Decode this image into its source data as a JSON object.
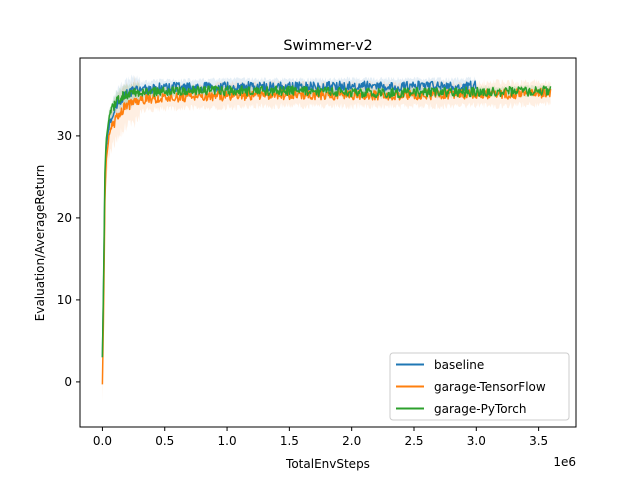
{
  "chart_data": {
    "type": "line",
    "title": "Swimmer-v2",
    "xlabel": "TotalEnvSteps",
    "ylabel": "Evaluation/AverageReturn",
    "x_offset_label": "1e6",
    "xlim": [
      -0.18,
      3.8
    ],
    "ylim": [
      -5.5,
      39.5
    ],
    "x_ticks": [
      0.0,
      0.5,
      1.0,
      1.5,
      2.0,
      2.5,
      3.0,
      3.5
    ],
    "x_tick_labels": [
      "0.0",
      "0.5",
      "1.0",
      "1.5",
      "2.0",
      "2.5",
      "3.0",
      "3.5"
    ],
    "y_ticks": [
      0,
      10,
      20,
      30
    ],
    "y_tick_labels": [
      "0",
      "10",
      "20",
      "30"
    ],
    "grid": false,
    "legend_position": "lower-right",
    "series": [
      {
        "name": "baseline",
        "color": "#1f77b4",
        "x": [
          0.0,
          0.01,
          0.02,
          0.03,
          0.05,
          0.08,
          0.12,
          0.18,
          0.25,
          0.35,
          0.5,
          0.75,
          1.0,
          1.25,
          1.5,
          1.75,
          2.0,
          2.25,
          2.5,
          2.75,
          3.0
        ],
        "y": [
          3.0,
          12.0,
          24.0,
          28.5,
          31.0,
          32.8,
          34.0,
          35.0,
          35.5,
          35.7,
          35.9,
          35.9,
          36.0,
          36.0,
          36.0,
          36.0,
          36.1,
          36.0,
          36.1,
          36.0,
          36.1
        ],
        "band": 0.9
      },
      {
        "name": "garage-TensorFlow",
        "color": "#ff7f0e",
        "x": [
          0.0,
          0.01,
          0.02,
          0.03,
          0.05,
          0.08,
          0.12,
          0.18,
          0.25,
          0.35,
          0.5,
          0.75,
          1.0,
          1.25,
          1.5,
          1.75,
          2.0,
          2.25,
          2.5,
          2.75,
          3.0,
          3.25,
          3.5,
          3.6
        ],
        "y": [
          -0.3,
          9.0,
          22.0,
          27.0,
          29.5,
          31.2,
          32.3,
          33.5,
          34.1,
          34.5,
          34.7,
          34.8,
          34.9,
          35.0,
          35.0,
          35.0,
          35.0,
          35.0,
          35.0,
          35.0,
          35.1,
          35.1,
          35.2,
          35.2
        ],
        "band": 1.4
      },
      {
        "name": "garage-PyTorch",
        "color": "#2ca02c",
        "x": [
          0.0,
          0.01,
          0.02,
          0.03,
          0.05,
          0.08,
          0.12,
          0.18,
          0.25,
          0.35,
          0.5,
          0.75,
          1.0,
          1.25,
          1.5,
          1.75,
          2.0,
          2.25,
          2.5,
          2.75,
          3.0,
          3.25,
          3.5,
          3.6
        ],
        "y": [
          3.0,
          13.0,
          25.5,
          29.5,
          31.8,
          33.3,
          34.4,
          35.0,
          35.2,
          35.3,
          35.4,
          35.5,
          35.5,
          35.5,
          35.5,
          35.4,
          35.3,
          35.2,
          35.3,
          35.3,
          35.4,
          35.4,
          35.5,
          35.6
        ],
        "band": 0.6
      }
    ]
  }
}
